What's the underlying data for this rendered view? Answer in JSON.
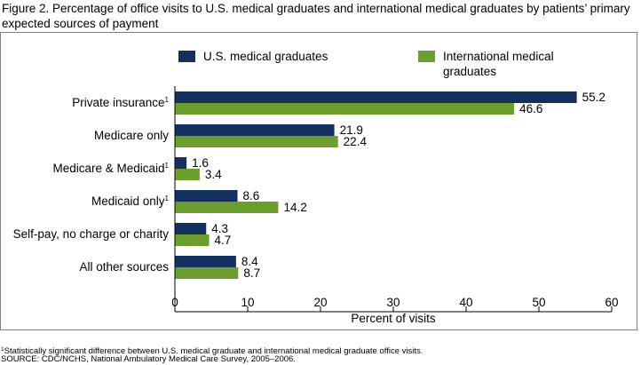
{
  "figure": {
    "title": "Figure 2. Percentage of office visits to U.S. medical graduates and international medical graduates by patients’ primary expected sources of payment",
    "footnote_marker": "1",
    "footnote_text": "Statistically significant difference between U.S. medical graduate and international medical graduate office visits.",
    "source": "SOURCE: CDC/NCHS, National Ambulatory Medical Care Survey, 2005–2006."
  },
  "chart_data": {
    "type": "bar",
    "orientation": "horizontal",
    "categories": [
      "Private insurance",
      "Medicare only",
      "Medicare & Medicaid",
      "Medicaid only",
      "Self-pay, no charge or charity",
      "All other sources"
    ],
    "category_footnotes": [
      "1",
      "",
      "1",
      "1",
      "",
      ""
    ],
    "series": [
      {
        "name": "U.S. medical graduates",
        "values": [
          55.2,
          21.9,
          1.6,
          8.6,
          4.3,
          8.4
        ],
        "color": "#14305F"
      },
      {
        "name": "International medical graduates",
        "values": [
          46.6,
          22.4,
          3.4,
          14.2,
          4.7,
          8.7
        ],
        "color": "#6B9E2F"
      }
    ],
    "legend_lines": [
      [
        "U.S. medical graduates"
      ],
      [
        "International medical",
        "graduates"
      ]
    ],
    "xlabel": "Percent of visits",
    "xlim": [
      0,
      60
    ],
    "xticks": [
      0,
      10,
      20,
      30,
      40,
      50,
      60
    ],
    "grid": false,
    "legend_position": "top"
  }
}
